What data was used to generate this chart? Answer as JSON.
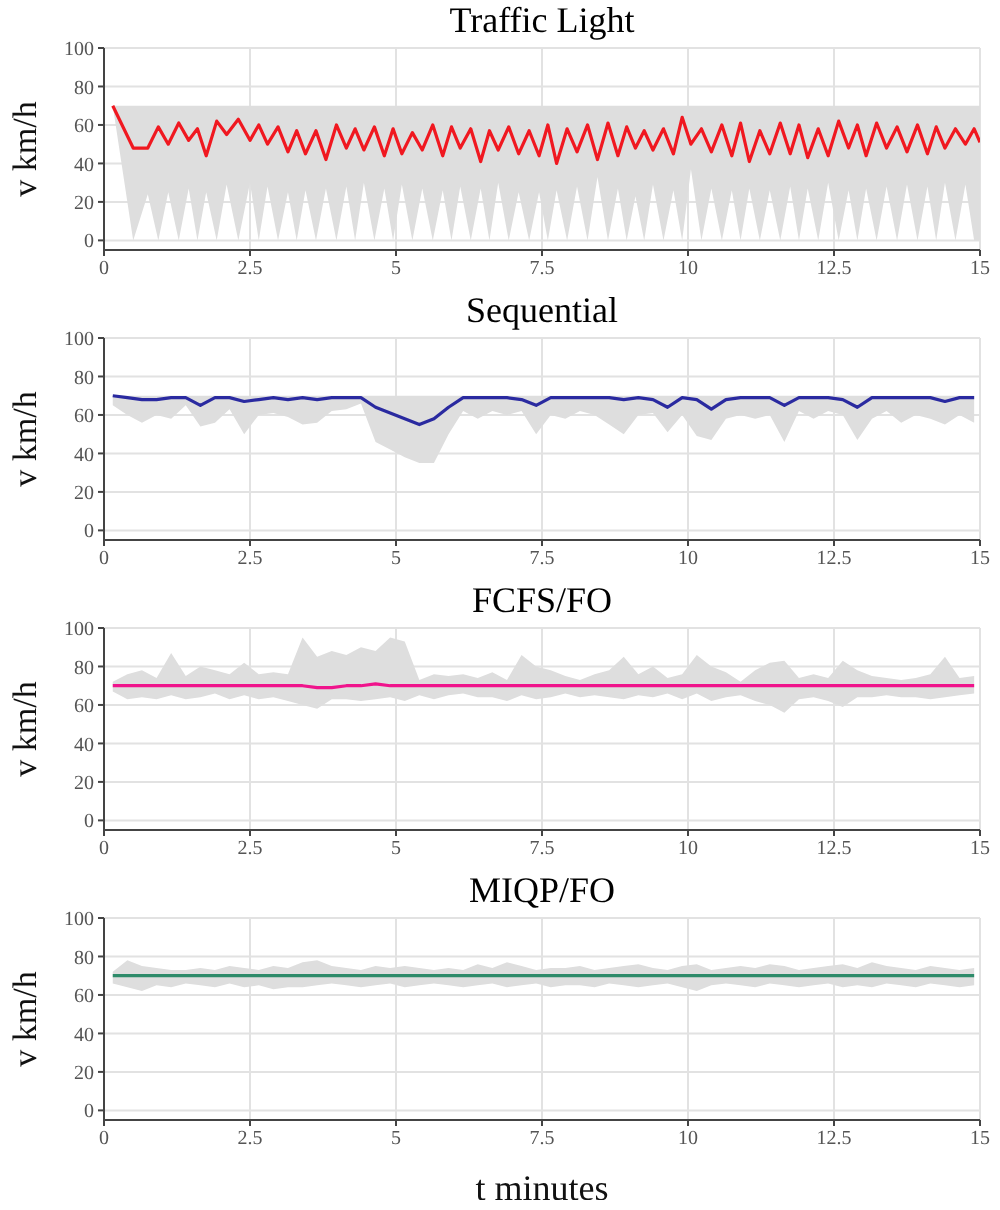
{
  "chart_data": [
    {
      "type": "line",
      "title": "Traffic Light",
      "ylabel": "v km/h",
      "xlim": [
        0,
        15
      ],
      "xticks": [
        0,
        2.5,
        5,
        7.5,
        10,
        12.5,
        15
      ],
      "ylim": [
        -5,
        100
      ],
      "yticks": [
        0,
        20,
        40,
        60,
        80,
        100
      ],
      "grid": true,
      "series": [
        {
          "color": "#f01820",
          "x": [
            0.15,
            0.5,
            0.75,
            0.93,
            1.1,
            1.28,
            1.45,
            1.6,
            1.75,
            1.93,
            2.1,
            2.3,
            2.5,
            2.65,
            2.8,
            2.98,
            3.15,
            3.3,
            3.45,
            3.63,
            3.8,
            3.98,
            4.15,
            4.3,
            4.45,
            4.63,
            4.8,
            4.95,
            5.1,
            5.28,
            5.45,
            5.63,
            5.8,
            5.95,
            6.1,
            6.28,
            6.45,
            6.6,
            6.75,
            6.93,
            7.1,
            7.28,
            7.45,
            7.6,
            7.75,
            7.93,
            8.1,
            8.28,
            8.45,
            8.63,
            8.8,
            8.95,
            9.1,
            9.25,
            9.4,
            9.58,
            9.75,
            9.9,
            10.05,
            10.23,
            10.4,
            10.58,
            10.75,
            10.9,
            11.05,
            11.23,
            11.4,
            11.58,
            11.75,
            11.9,
            12.05,
            12.23,
            12.4,
            12.58,
            12.75,
            12.9,
            13.05,
            13.23,
            13.4,
            13.58,
            13.75,
            13.93,
            14.1,
            14.25,
            14.4,
            14.58,
            14.75,
            14.9,
            15
          ],
          "values": [
            70,
            48,
            48,
            59,
            50,
            61,
            52,
            58,
            44,
            62,
            55,
            63,
            52,
            60,
            50,
            59,
            46,
            57,
            45,
            57,
            42,
            60,
            48,
            58,
            47,
            59,
            44,
            58,
            45,
            56,
            47,
            60,
            44,
            59,
            48,
            58,
            41,
            57,
            47,
            59,
            45,
            57,
            44,
            60,
            40,
            58,
            46,
            60,
            42,
            61,
            44,
            59,
            48,
            57,
            47,
            58,
            45,
            64,
            50,
            58,
            46,
            60,
            44,
            61,
            41,
            57,
            45,
            61,
            45,
            60,
            43,
            58,
            44,
            62,
            48,
            60,
            44,
            61,
            48,
            59,
            46,
            60,
            45,
            59,
            48,
            58,
            50,
            58,
            51
          ],
          "lower": [
            70,
            0,
            24,
            0,
            25,
            0,
            27,
            0,
            25,
            0,
            29,
            0,
            30,
            0,
            28,
            0,
            25,
            0,
            26,
            0,
            27,
            0,
            28,
            0,
            30,
            0,
            27,
            0,
            29,
            0,
            27,
            0,
            26,
            0,
            28,
            0,
            27,
            0,
            30,
            0,
            25,
            0,
            25,
            0,
            26,
            0,
            28,
            0,
            33,
            0,
            27,
            0,
            23,
            0,
            29,
            0,
            26,
            0,
            37,
            0,
            27,
            0,
            26,
            0,
            27,
            0,
            26,
            0,
            28,
            0,
            27,
            0,
            30,
            0,
            26,
            0,
            27,
            0,
            28,
            0,
            29,
            0,
            28,
            0,
            30,
            0,
            29,
            0,
            0
          ],
          "upper": [
            70,
            70,
            70,
            70,
            70,
            70,
            70,
            70,
            70,
            70,
            70,
            70,
            70,
            70,
            70,
            70,
            70,
            70,
            70,
            70,
            70,
            70,
            70,
            70,
            70,
            70,
            70,
            70,
            70,
            70,
            70,
            70,
            70,
            70,
            70,
            70,
            70,
            70,
            70,
            70,
            70,
            70,
            70,
            70,
            70,
            70,
            70,
            70,
            70,
            70,
            70,
            70,
            70,
            70,
            70,
            70,
            70,
            70,
            70,
            70,
            70,
            70,
            70,
            70,
            70,
            70,
            70,
            70,
            70,
            70,
            70,
            70,
            70,
            70,
            70,
            70,
            70,
            70,
            70,
            70,
            70,
            70,
            70,
            70,
            70,
            70,
            70,
            70,
            70
          ]
        }
      ]
    },
    {
      "type": "line",
      "title": "Sequential",
      "ylabel": "v km/h",
      "xlim": [
        0,
        15
      ],
      "xticks": [
        0,
        2.5,
        5,
        7.5,
        10,
        12.5,
        15
      ],
      "ylim": [
        -5,
        100
      ],
      "yticks": [
        0,
        20,
        40,
        60,
        80,
        100
      ],
      "grid": true,
      "series": [
        {
          "color": "#2a2aa0",
          "x": [
            0.15,
            0.4,
            0.65,
            0.9,
            1.15,
            1.4,
            1.65,
            1.9,
            2.15,
            2.4,
            2.65,
            2.9,
            3.15,
            3.4,
            3.65,
            3.9,
            4.15,
            4.4,
            4.65,
            4.9,
            5.15,
            5.4,
            5.65,
            5.9,
            6.15,
            6.4,
            6.65,
            6.9,
            7.15,
            7.4,
            7.65,
            7.9,
            8.15,
            8.4,
            8.65,
            8.9,
            9.15,
            9.4,
            9.65,
            9.9,
            10.15,
            10.4,
            10.65,
            10.9,
            11.15,
            11.4,
            11.65,
            11.9,
            12.15,
            12.4,
            12.65,
            12.9,
            13.15,
            13.4,
            13.65,
            13.9,
            14.15,
            14.4,
            14.65,
            14.9
          ],
          "values": [
            70,
            69,
            68,
            68,
            69,
            69,
            65,
            69,
            69,
            67,
            68,
            69,
            68,
            69,
            68,
            69,
            69,
            69,
            64,
            61,
            58,
            55,
            58,
            64,
            69,
            69,
            69,
            69,
            68,
            65,
            69,
            69,
            69,
            69,
            69,
            68,
            69,
            68,
            64,
            69,
            68,
            63,
            68,
            69,
            69,
            69,
            65,
            69,
            69,
            69,
            68,
            64,
            69,
            69,
            69,
            69,
            69,
            67,
            69,
            69
          ],
          "lower": [
            65,
            60,
            56,
            60,
            58,
            65,
            54,
            56,
            63,
            50,
            60,
            61,
            59,
            55,
            56,
            62,
            63,
            66,
            46,
            42,
            38,
            35,
            35,
            50,
            62,
            58,
            62,
            60,
            62,
            50,
            60,
            58,
            62,
            60,
            55,
            50,
            60,
            61,
            51,
            60,
            49,
            47,
            58,
            60,
            58,
            60,
            46,
            62,
            58,
            62,
            60,
            47,
            58,
            62,
            56,
            60,
            58,
            55,
            60,
            56
          ],
          "upper": [
            70,
            70,
            70,
            70,
            70,
            70,
            70,
            70,
            70,
            70,
            70,
            70,
            70,
            70,
            70,
            70,
            70,
            70,
            70,
            70,
            70,
            70,
            70,
            70,
            70,
            70,
            70,
            70,
            70,
            70,
            70,
            70,
            70,
            70,
            70,
            70,
            70,
            70,
            70,
            70,
            70,
            70,
            70,
            70,
            70,
            70,
            70,
            70,
            70,
            70,
            70,
            70,
            70,
            70,
            70,
            70,
            70,
            70,
            70,
            70
          ]
        }
      ]
    },
    {
      "type": "line",
      "title": "FCFS/FO",
      "ylabel": "v km/h",
      "xlim": [
        0,
        15
      ],
      "xticks": [
        0,
        2.5,
        5,
        7.5,
        10,
        12.5,
        15
      ],
      "ylim": [
        -5,
        100
      ],
      "yticks": [
        0,
        20,
        40,
        60,
        80,
        100
      ],
      "grid": true,
      "series": [
        {
          "color": "#f0148c",
          "x": [
            0.15,
            0.4,
            0.65,
            0.9,
            1.15,
            1.4,
            1.65,
            1.9,
            2.15,
            2.4,
            2.65,
            2.9,
            3.15,
            3.4,
            3.65,
            3.9,
            4.15,
            4.4,
            4.65,
            4.9,
            5.15,
            5.4,
            5.65,
            5.9,
            6.15,
            6.4,
            6.65,
            6.9,
            7.15,
            7.4,
            7.65,
            7.9,
            8.15,
            8.4,
            8.65,
            8.9,
            9.15,
            9.4,
            9.65,
            9.9,
            10.15,
            10.4,
            10.65,
            10.9,
            11.15,
            11.4,
            11.65,
            11.9,
            12.15,
            12.4,
            12.65,
            12.9,
            13.15,
            13.4,
            13.65,
            13.9,
            14.15,
            14.4,
            14.65,
            14.9
          ],
          "values": [
            70,
            70,
            70,
            70,
            70,
            70,
            70,
            70,
            70,
            70,
            70,
            70,
            70,
            70,
            69,
            69,
            70,
            70,
            71,
            70,
            70,
            70,
            70,
            70,
            70,
            70,
            70,
            70,
            70,
            70,
            70,
            70,
            70,
            70,
            70,
            70,
            70,
            70,
            70,
            70,
            70,
            70,
            70,
            70,
            70,
            70,
            70,
            70,
            70,
            70,
            70,
            70,
            70,
            70,
            70,
            70,
            70,
            70,
            70,
            70
          ],
          "lower": [
            67,
            63,
            64,
            63,
            65,
            63,
            64,
            66,
            63,
            65,
            63,
            64,
            62,
            60,
            58,
            63,
            63,
            62,
            63,
            64,
            62,
            65,
            63,
            65,
            66,
            64,
            64,
            62,
            65,
            63,
            64,
            66,
            64,
            65,
            64,
            63,
            65,
            64,
            66,
            63,
            66,
            62,
            64,
            65,
            62,
            60,
            56,
            63,
            64,
            62,
            59,
            64,
            64,
            65,
            64,
            64,
            63,
            64,
            65,
            66
          ],
          "upper": [
            72,
            76,
            78,
            74,
            87,
            75,
            80,
            78,
            76,
            82,
            76,
            77,
            76,
            95,
            85,
            88,
            86,
            90,
            88,
            95,
            93,
            73,
            76,
            75,
            76,
            74,
            77,
            73,
            86,
            80,
            78,
            75,
            73,
            76,
            78,
            85,
            76,
            80,
            74,
            76,
            86,
            80,
            77,
            72,
            78,
            82,
            83,
            74,
            76,
            74,
            83,
            78,
            75,
            74,
            73,
            74,
            76,
            85,
            74,
            75
          ]
        }
      ]
    },
    {
      "type": "line",
      "title": "MIQP/FO",
      "xlabel": "t minutes",
      "ylabel": "v km/h",
      "xlim": [
        0,
        15
      ],
      "xticks": [
        0,
        2.5,
        5,
        7.5,
        10,
        12.5,
        15
      ],
      "ylim": [
        -5,
        100
      ],
      "yticks": [
        0,
        20,
        40,
        60,
        80,
        100
      ],
      "grid": true,
      "series": [
        {
          "color": "#2e8b6a",
          "x": [
            0.15,
            0.4,
            0.65,
            0.9,
            1.15,
            1.4,
            1.65,
            1.9,
            2.15,
            2.4,
            2.65,
            2.9,
            3.15,
            3.4,
            3.65,
            3.9,
            4.15,
            4.4,
            4.65,
            4.9,
            5.15,
            5.4,
            5.65,
            5.9,
            6.15,
            6.4,
            6.65,
            6.9,
            7.15,
            7.4,
            7.65,
            7.9,
            8.15,
            8.4,
            8.65,
            8.9,
            9.15,
            9.4,
            9.65,
            9.9,
            10.15,
            10.4,
            10.65,
            10.9,
            11.15,
            11.4,
            11.65,
            11.9,
            12.15,
            12.4,
            12.65,
            12.9,
            13.15,
            13.4,
            13.65,
            13.9,
            14.15,
            14.4,
            14.65,
            14.9
          ],
          "values": [
            70,
            70,
            70,
            70,
            70,
            70,
            70,
            70,
            70,
            70,
            70,
            70,
            70,
            70,
            70,
            70,
            70,
            70,
            70,
            70,
            70,
            70,
            70,
            70,
            70,
            70,
            70,
            70,
            70,
            70,
            70,
            70,
            70,
            70,
            70,
            70,
            70,
            70,
            70,
            70,
            70,
            70,
            70,
            70,
            70,
            70,
            70,
            70,
            70,
            70,
            70,
            70,
            70,
            70,
            70,
            70,
            70,
            70,
            70,
            70
          ],
          "lower": [
            66,
            64,
            62,
            65,
            64,
            66,
            65,
            64,
            66,
            64,
            65,
            63,
            64,
            64,
            65,
            66,
            65,
            64,
            65,
            66,
            64,
            65,
            66,
            65,
            64,
            65,
            66,
            64,
            65,
            66,
            64,
            65,
            65,
            64,
            66,
            65,
            64,
            65,
            66,
            64,
            62,
            65,
            66,
            65,
            64,
            66,
            65,
            64,
            65,
            66,
            64,
            65,
            64,
            66,
            65,
            64,
            66,
            65,
            64,
            65
          ],
          "upper": [
            72,
            78,
            75,
            74,
            73,
            73,
            74,
            73,
            75,
            74,
            73,
            75,
            74,
            77,
            78,
            75,
            74,
            73,
            75,
            74,
            75,
            74,
            73,
            74,
            73,
            76,
            74,
            77,
            75,
            73,
            74,
            74,
            75,
            73,
            74,
            75,
            76,
            74,
            73,
            75,
            76,
            73,
            74,
            75,
            74,
            76,
            75,
            73,
            74,
            75,
            76,
            74,
            77,
            75,
            74,
            73,
            75,
            74,
            73,
            74
          ]
        }
      ]
    }
  ]
}
